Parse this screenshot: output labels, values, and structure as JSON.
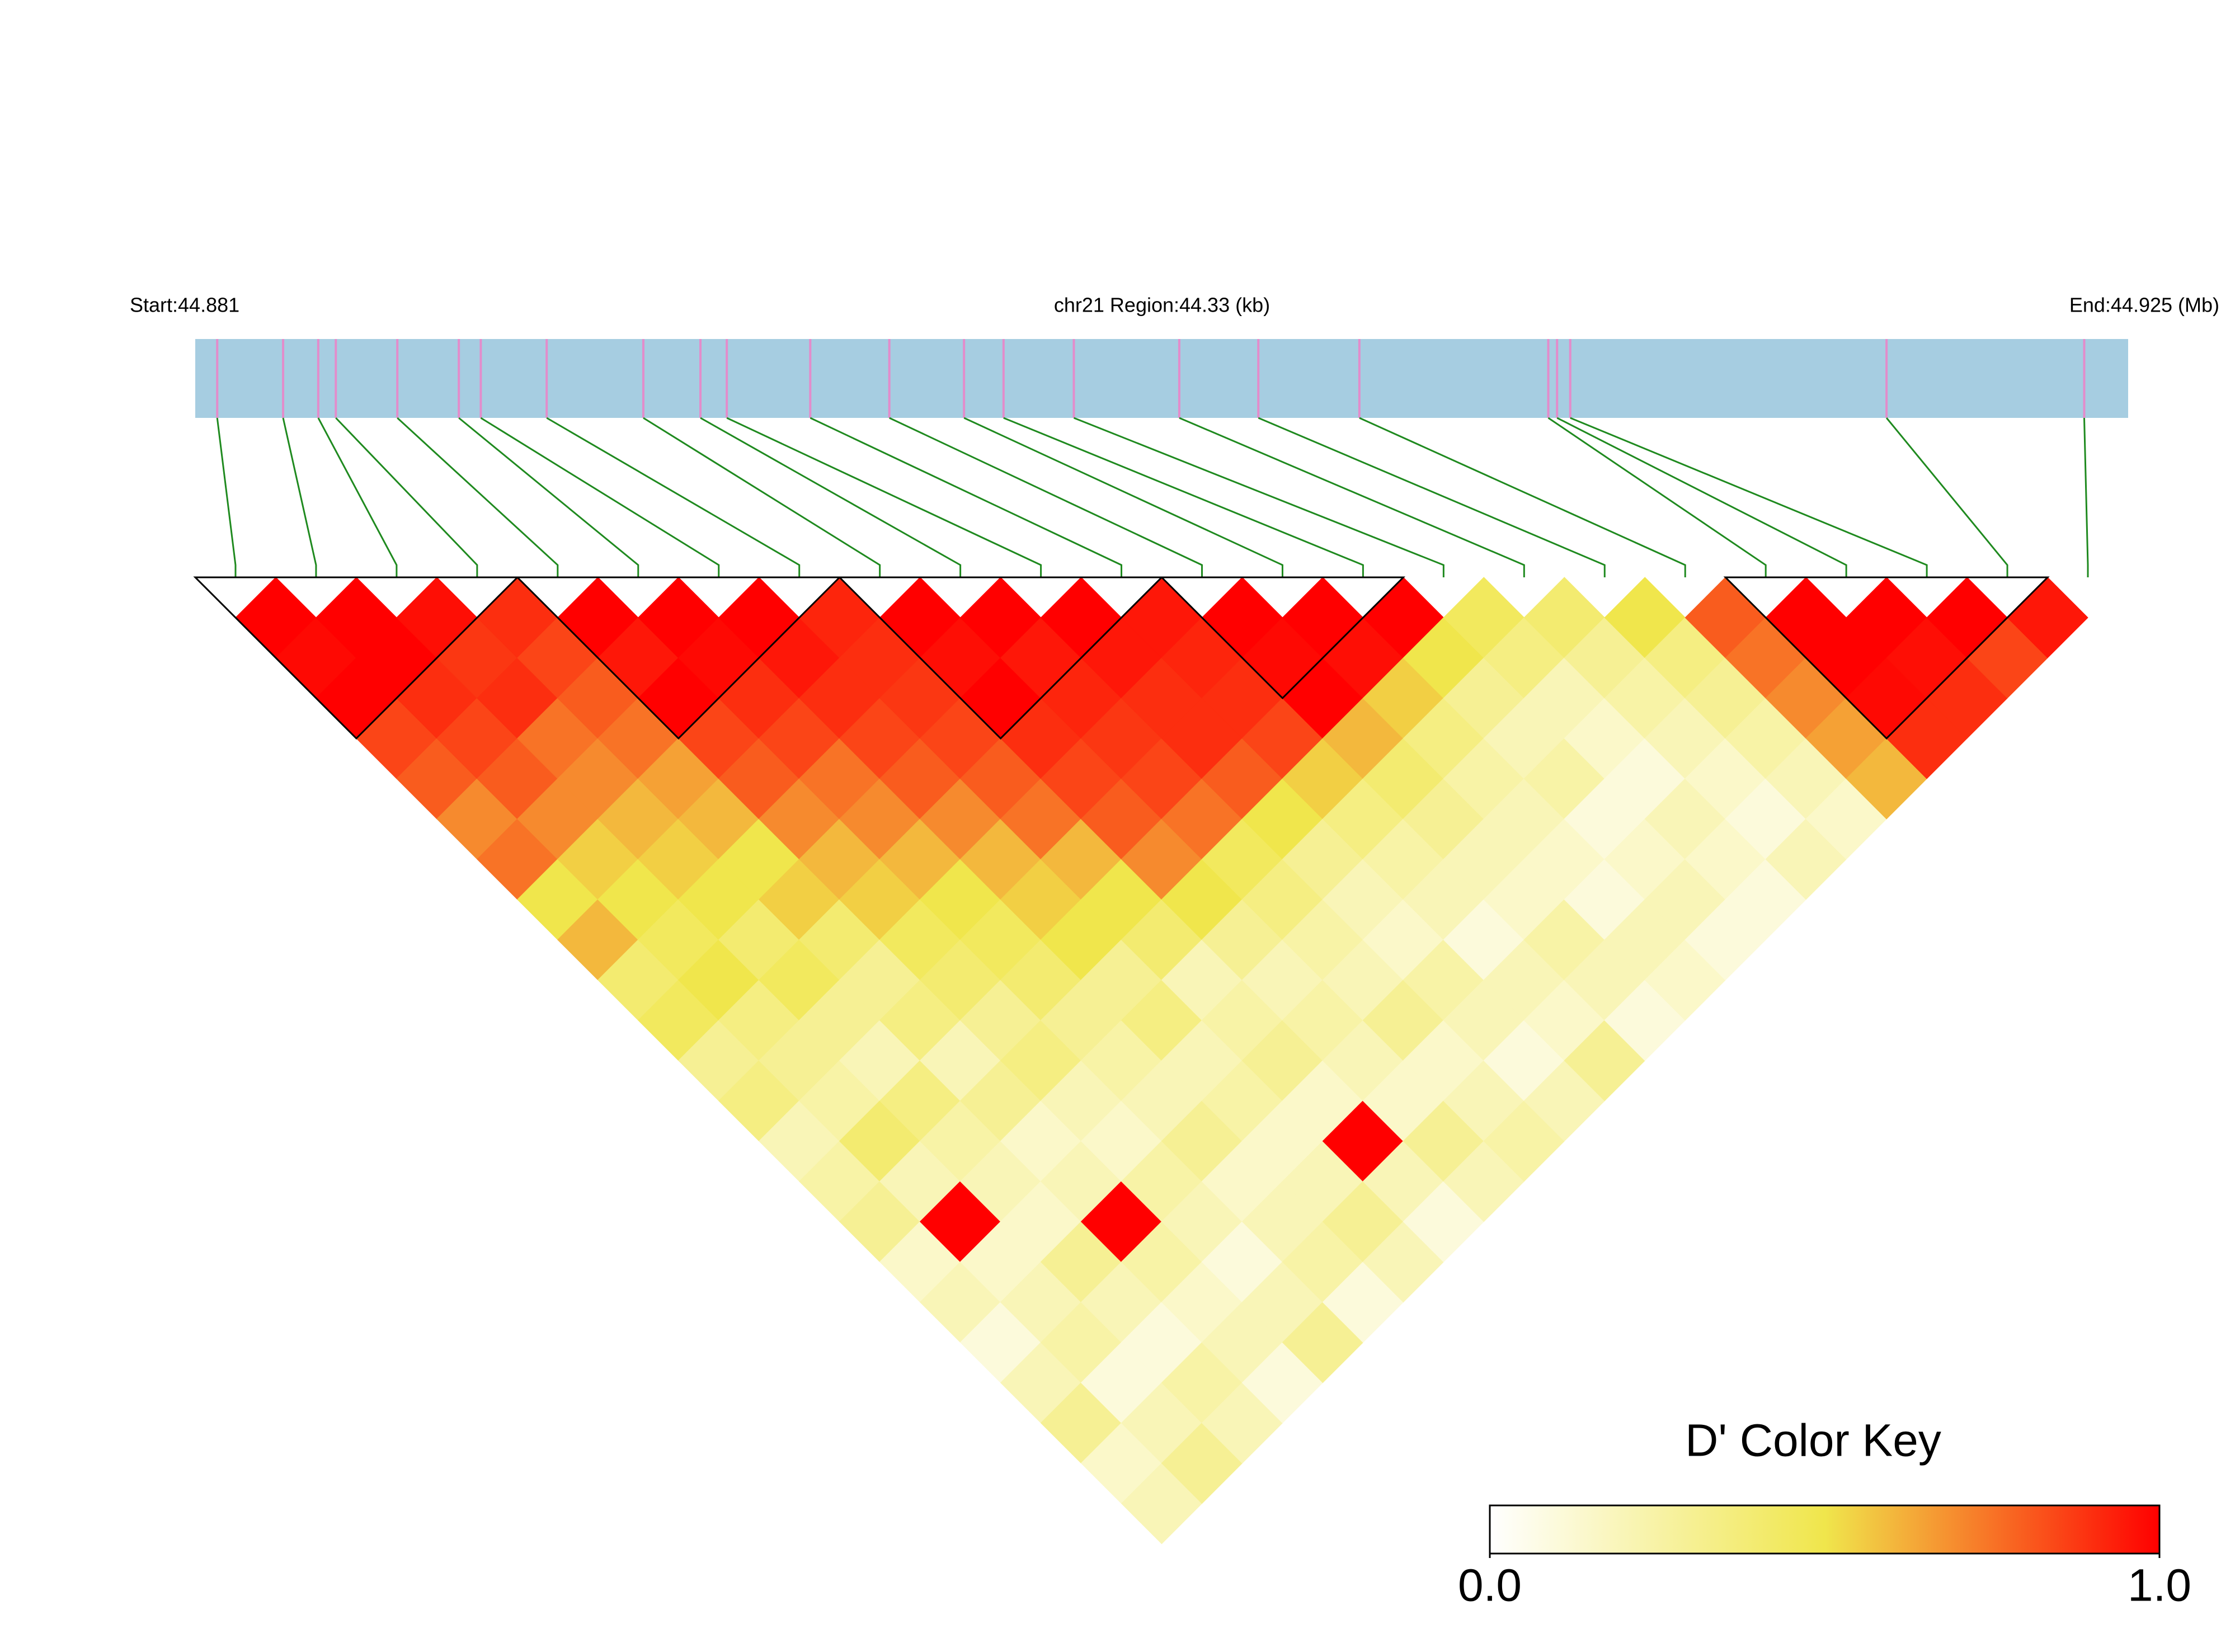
{
  "chart_data": {
    "type": "ld-heatmap",
    "start_label": "Start:44.881",
    "region_label": "chr21 Region:44.33 (kb)",
    "end_label": "End:44.925 (Mb)",
    "key_title": "D' Color Key",
    "xlim": [
      44.881,
      44.925
    ],
    "snp_positions": [
      44.8815,
      44.883,
      44.8838,
      44.8842,
      44.8856,
      44.887,
      44.8875,
      44.889,
      44.8912,
      44.8925,
      44.8931,
      44.895,
      44.8968,
      44.8985,
      44.8994,
      44.901,
      44.9034,
      44.9052,
      44.9075,
      44.9118,
      44.912,
      44.9123,
      44.9195,
      44.924
    ],
    "dprime": [
      [
        1,
        0.98,
        1,
        0.85,
        0.8,
        0.7,
        0.75,
        0.5,
        0.6,
        0.4,
        0.45,
        0.3,
        0.35,
        0.2,
        0.25,
        0.3,
        0.15,
        0.2,
        0.1,
        0.2,
        0.3,
        0.15,
        0.2
      ],
      [
        1,
        1,
        0.9,
        0.85,
        0.8,
        0.7,
        0.55,
        0.5,
        0.45,
        0.5,
        0.35,
        0.3,
        0.25,
        0.4,
        0.2,
        1,
        0.15,
        0.2,
        0.25,
        0.1,
        0.2,
        0.3
      ],
      [
        0.97,
        0.88,
        0.9,
        0.75,
        0.7,
        0.6,
        0.55,
        0.5,
        0.4,
        0.45,
        0.3,
        0.2,
        0.35,
        0.25,
        0.2,
        0.15,
        0.3,
        0.2,
        0.1,
        0.25,
        0.2
      ],
      [
        0.9,
        0.85,
        0.8,
        0.75,
        0.65,
        0.6,
        0.5,
        0.55,
        0.4,
        0.3,
        0.35,
        0.2,
        0.3,
        0.15,
        0.2,
        1,
        0.25,
        0.15,
        0.2,
        0.1
      ],
      [
        1,
        0.95,
        1,
        0.85,
        0.8,
        0.7,
        0.6,
        0.55,
        0.45,
        0.4,
        0.3,
        0.35,
        0.2,
        0.15,
        0.25,
        0.2,
        0.1,
        0.2,
        0.3
      ],
      [
        1,
        0.98,
        0.9,
        0.85,
        0.75,
        0.7,
        0.6,
        0.5,
        0.45,
        0.4,
        0.3,
        0.25,
        0.2,
        0.3,
        0.15,
        0.2,
        0.25,
        0.1
      ],
      [
        1,
        0.95,
        0.9,
        0.85,
        0.8,
        0.7,
        0.6,
        0.55,
        0.5,
        0.3,
        0.35,
        0.2,
        0.25,
        0.15,
        0.2,
        0.3,
        0.2
      ],
      [
        0.92,
        0.9,
        0.88,
        0.85,
        0.8,
        0.75,
        0.6,
        0.5,
        0.4,
        0.2,
        0.25,
        0.3,
        0.15,
        1,
        0.2,
        0.1
      ],
      [
        1,
        0.97,
        1,
        0.9,
        0.85,
        0.8,
        0.7,
        0.5,
        0.3,
        0.2,
        0.25,
        0.2,
        0.15,
        0.3,
        0.2
      ],
      [
        1,
        0.95,
        0.92,
        0.88,
        0.85,
        0.75,
        0.45,
        0.35,
        0.25,
        0.2,
        0.3,
        0.15,
        0.2,
        0.25
      ],
      [
        1,
        0.95,
        0.9,
        0.9,
        0.8,
        0.5,
        0.3,
        0.2,
        0.15,
        0.25,
        0.2,
        0.1,
        0.2
      ],
      [
        0.95,
        0.92,
        0.9,
        0.85,
        0.55,
        0.35,
        0.25,
        0.2,
        0.1,
        0.2,
        0.15,
        0.3
      ],
      [
        1,
        0.98,
        1,
        0.6,
        0.4,
        0.3,
        0.2,
        0.15,
        0.25,
        0.2,
        0.1
      ],
      [
        1,
        0.97,
        0.55,
        0.35,
        0.25,
        0.2,
        0.15,
        0.1,
        0.2,
        0.15
      ],
      [
        1,
        0.5,
        0.3,
        0.2,
        0.25,
        0.1,
        0.15,
        0.2,
        0.1
      ],
      [
        0.45,
        0.35,
        0.2,
        0.15,
        0.1,
        0.2,
        0.15,
        0.1
      ],
      [
        0.4,
        0.3,
        0.25,
        0.2,
        0.15,
        0.1,
        0.2
      ],
      [
        0.5,
        0.35,
        0.3,
        0.25,
        0.2,
        0.15
      ],
      [
        0.8,
        0.75,
        0.7,
        0.65,
        0.6
      ],
      [
        1,
        1,
        0.98,
        0.9
      ],
      [
        1,
        0.97,
        0.9
      ],
      [
        1,
        0.85
      ],
      [
        0.95
      ]
    ],
    "blocks": [
      [
        0,
        3
      ],
      [
        4,
        7
      ],
      [
        8,
        11
      ],
      [
        12,
        14
      ],
      [
        19,
        22
      ]
    ],
    "clim": [
      0,
      1
    ],
    "cticks": [
      {
        "value": 0,
        "label": "0.0"
      },
      {
        "value": 1,
        "label": "1.0"
      }
    ],
    "colors": [
      "#ffffff",
      "#f0e64c",
      "#ff0000"
    ],
    "bar_color": "#a6cde1",
    "snp_color": "#e38ccb",
    "link_color": "#1f8a1f"
  }
}
